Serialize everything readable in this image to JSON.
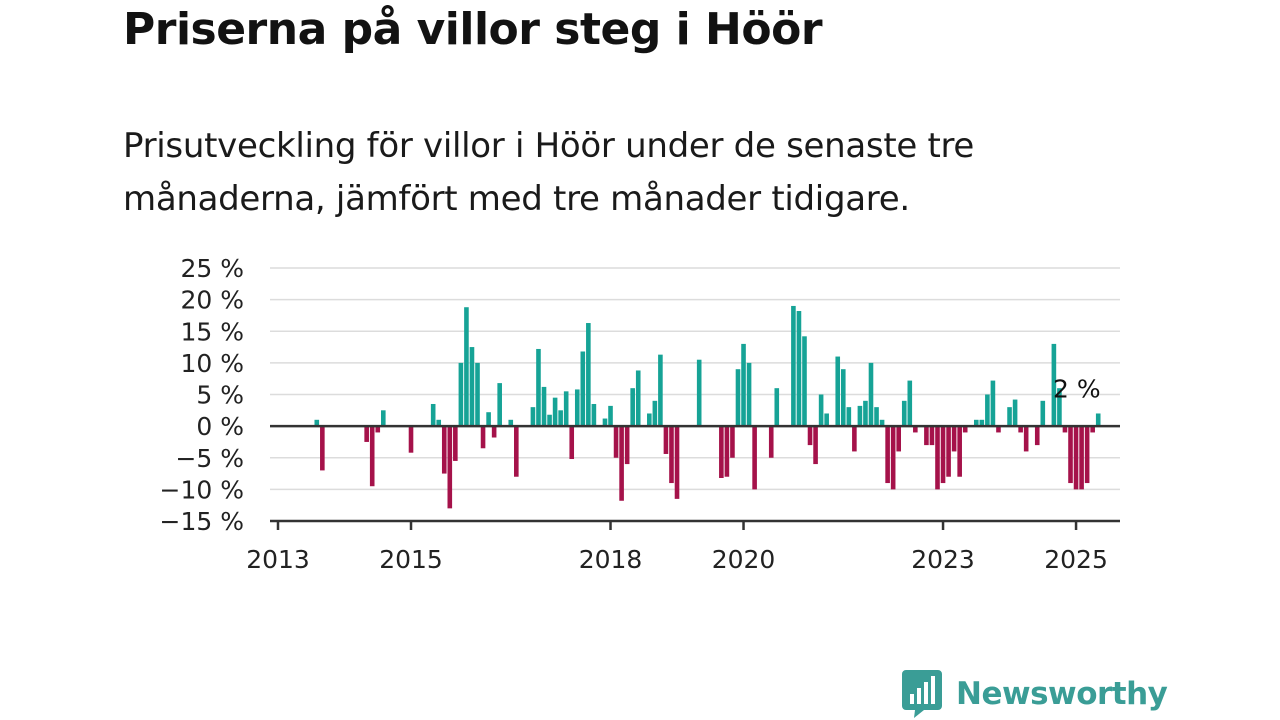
{
  "title": "Priserna på villor steg i Höör",
  "subtitle": "Prisutveckling för villor i Höör under de senaste tre månaderna, jämfört med tre månader tidigare.",
  "brand": {
    "name": "Newsworthy",
    "icon": "newsworthy-logo-icon"
  },
  "colors": {
    "positive": "#16a396",
    "negative": "#a5124a",
    "grid": "#dcdcdc",
    "axis": "#333333",
    "brand": "#3a9d96"
  },
  "chart_data": {
    "type": "bar",
    "x_unit": "month",
    "ylim": [
      -15,
      25
    ],
    "yticks": [
      25,
      20,
      15,
      10,
      5,
      0,
      -5,
      -10,
      -15
    ],
    "ytick_labels": [
      "25 %",
      "20 %",
      "15 %",
      "10 %",
      "5 %",
      "0 %",
      "−5 %",
      "−10 %",
      "−15 %"
    ],
    "xticks": [
      {
        "date": "2013-01",
        "label": "2013"
      },
      {
        "date": "2015-01",
        "label": "2015"
      },
      {
        "date": "2018-01",
        "label": "2018"
      },
      {
        "date": "2020-01",
        "label": "2020"
      },
      {
        "date": "2023-01",
        "label": "2023"
      },
      {
        "date": "2025-01",
        "label": "2025"
      }
    ],
    "grid": true,
    "annotation": {
      "date": "2025-01",
      "text": "2 %"
    },
    "series": [
      {
        "start": "2013-08",
        "values": [
          1,
          -7,
          null,
          null,
          null,
          null,
          null,
          null,
          null,
          -2.5,
          -9.5,
          -1,
          2.5,
          null,
          null,
          null,
          null,
          -4.2,
          null,
          null,
          null,
          3.5,
          1,
          -7.5,
          -13,
          -5.5,
          10,
          18.8,
          12.5,
          10,
          -3.5,
          2.2,
          -1.8,
          6.8,
          null,
          1,
          -8,
          null,
          null,
          3,
          12.2,
          6.2,
          1.8,
          4.5,
          2.5,
          5.5,
          -5.2,
          5.8,
          11.8,
          16.3,
          3.5,
          null,
          1.2,
          3.2,
          -5,
          -11.8,
          -6,
          6,
          8.8,
          null,
          2,
          4,
          11.3,
          -4.4,
          -9,
          -11.5,
          null,
          null,
          null,
          10.5,
          null,
          null,
          null,
          -8.2,
          -8,
          -5,
          9,
          13,
          10,
          -10,
          null,
          null,
          -5,
          6,
          null,
          null,
          19,
          18.2,
          14.2,
          -3,
          -6,
          5,
          2,
          null,
          11,
          9,
          3,
          -4,
          3.2,
          4,
          10,
          3,
          1,
          -9,
          -10,
          -4,
          4,
          7.2,
          -1,
          null,
          -3,
          -3,
          -10,
          -9,
          -8,
          -4,
          -8,
          -1,
          null,
          1,
          1,
          5,
          7.2,
          -1,
          null,
          3,
          4.2,
          -1,
          -4,
          null,
          -3,
          4,
          null,
          13,
          6,
          -1,
          -9,
          -10,
          -10,
          -9,
          -1,
          2
        ]
      }
    ]
  }
}
